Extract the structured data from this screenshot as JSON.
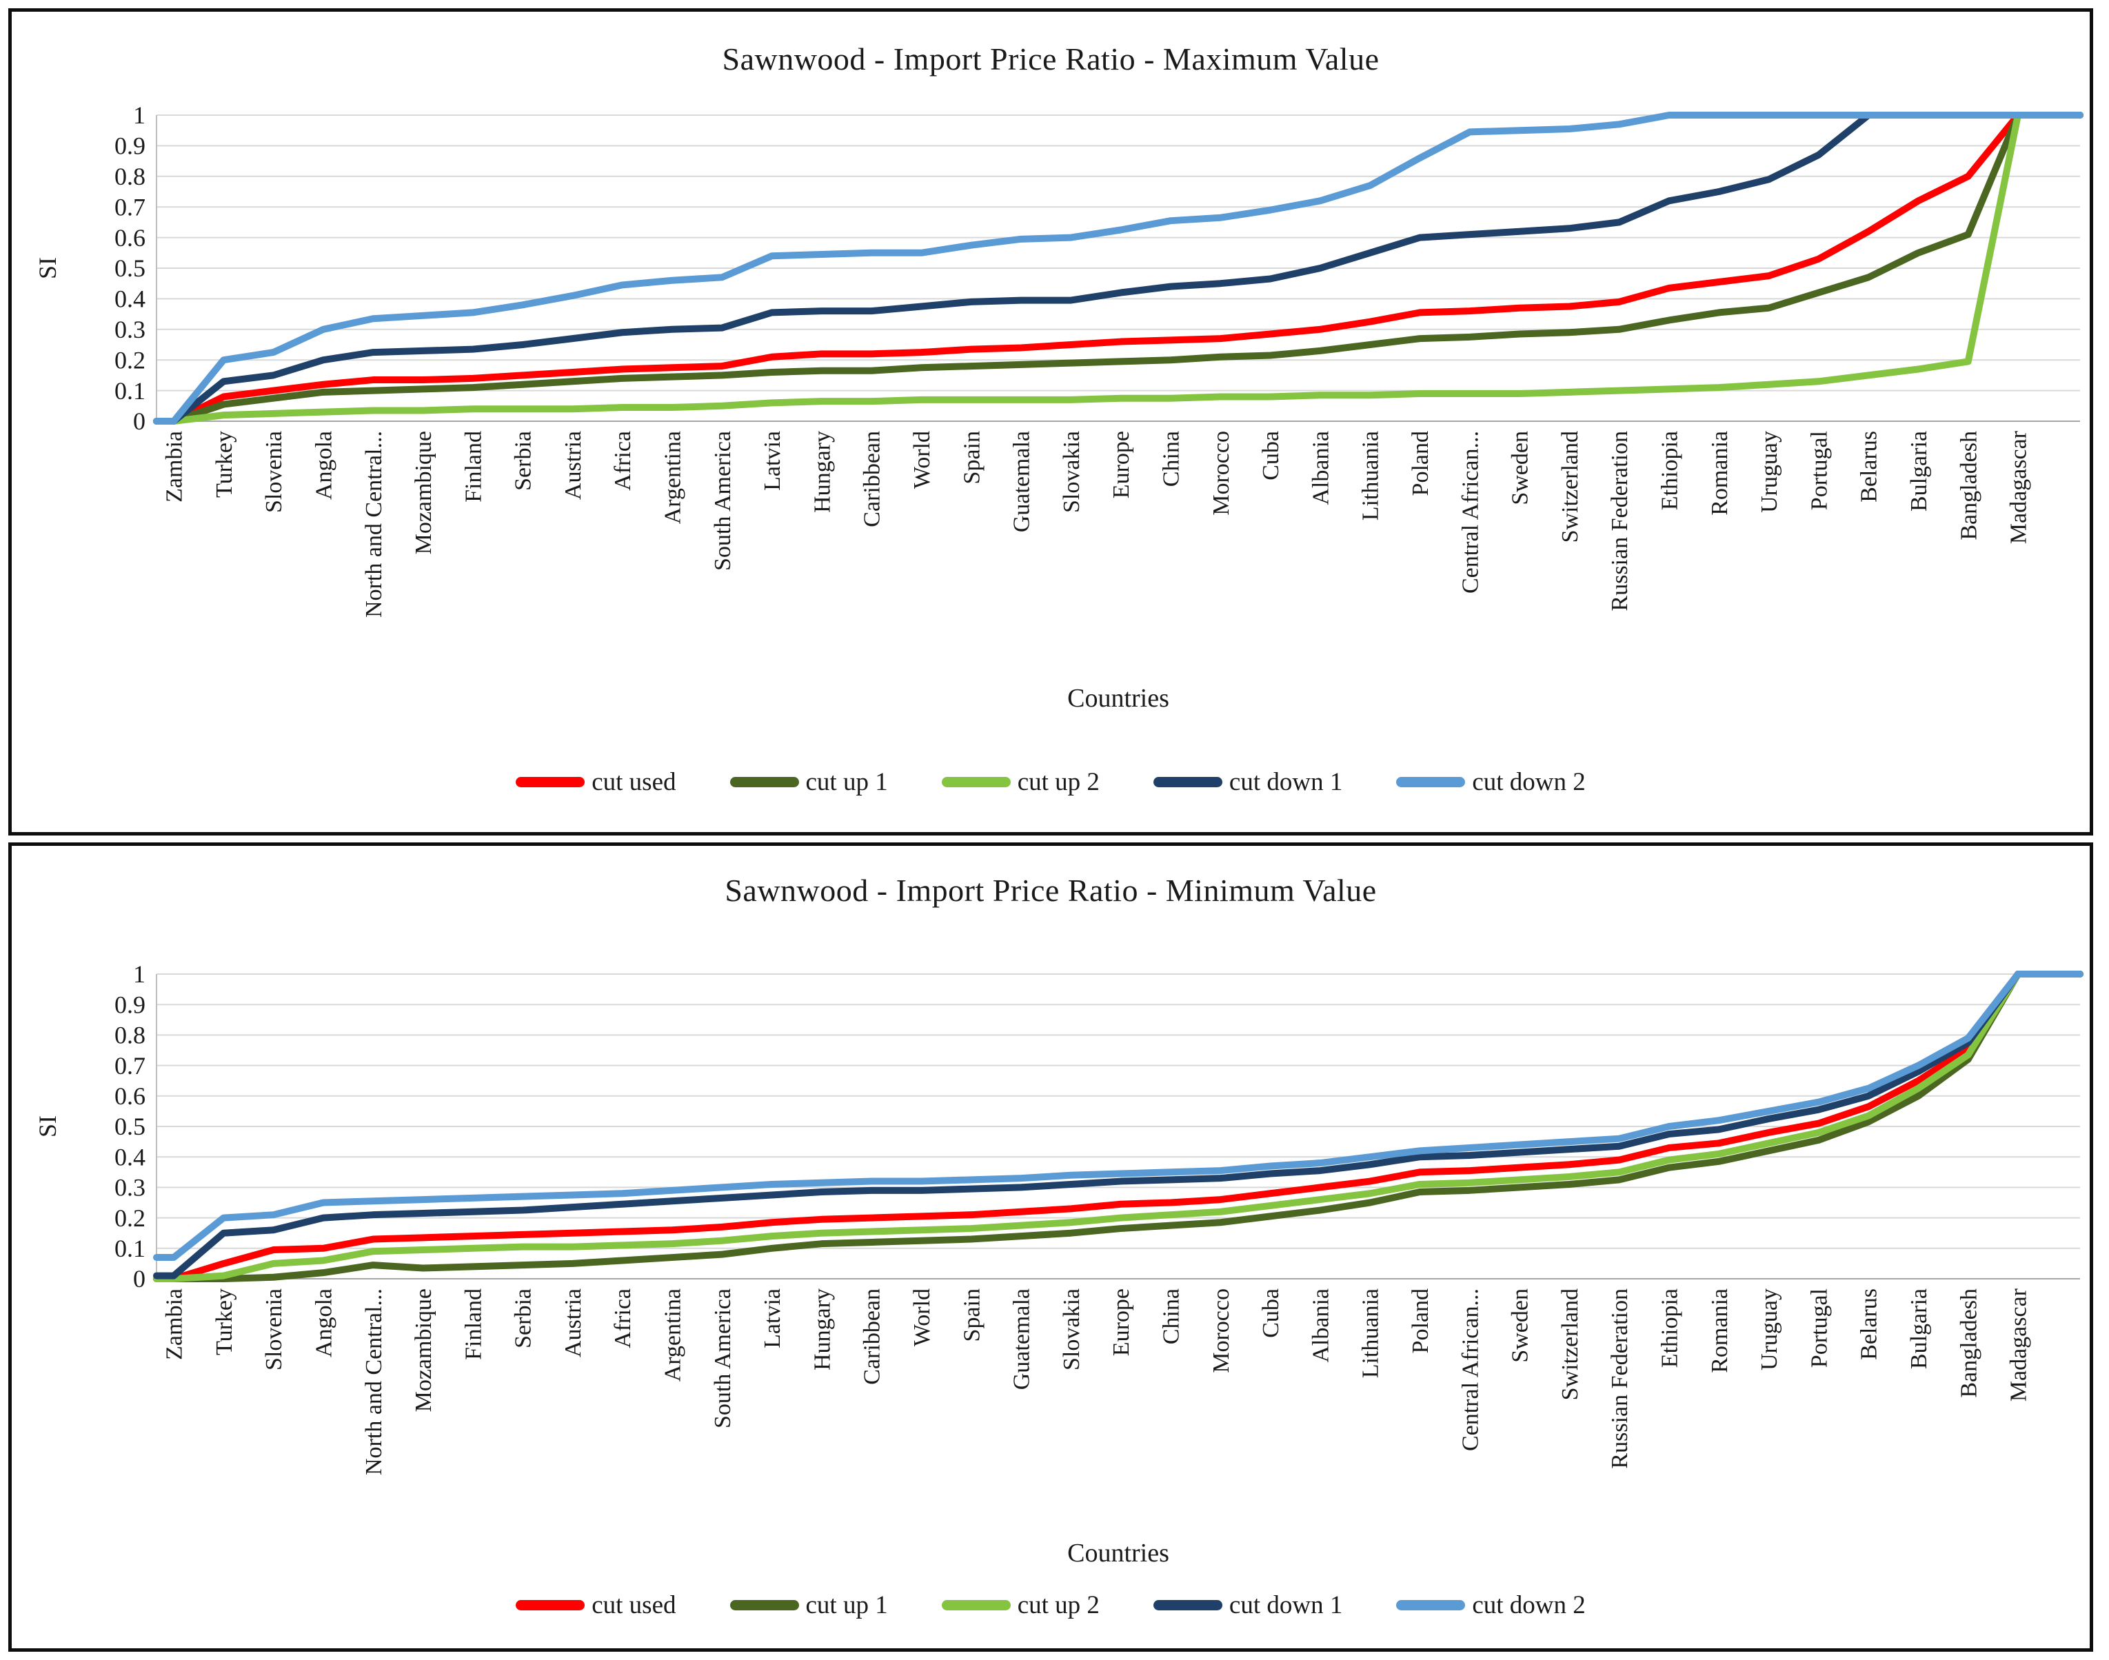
{
  "page": {
    "background_color": "#ffffff",
    "frame_border_color": "#0d0d0d"
  },
  "chart_data": [
    {
      "type": "line",
      "title": "Sawnwood - Import Price Ratio - Maximum Value",
      "xlabel": "Countries",
      "ylabel": "SI",
      "ylim": [
        0,
        1
      ],
      "y_ticks": [
        "0",
        "0.1",
        "0.2",
        "0.3",
        "0.4",
        "0.5",
        "0.6",
        "0.7",
        "0.8",
        "0.9",
        "1"
      ],
      "grid": "horizontal",
      "gridline_color": "#d9d9d9",
      "axis_line_color": "#bfbfbf",
      "legend_position": "bottom",
      "categories": [
        "Zambia",
        "Turkey",
        "Slovenia",
        "Angola",
        "North and Central...",
        "Mozambique",
        "Finland",
        "Serbia",
        "Austria",
        "Africa",
        "Argentina",
        "South America",
        "Latvia",
        "Hungary",
        "Caribbean",
        "World",
        "Spain",
        "Guatemala",
        "Slovakia",
        "Europe",
        "China",
        "Morocco",
        "Cuba",
        "Albania",
        "Lithuania",
        "Poland",
        "Central African...",
        "Sweden",
        "Switzerland",
        "Russian Federation",
        "Ethiopia",
        "Romania",
        "Uruguay",
        "Portugal",
        "Belarus",
        "Bulgaria",
        "Bangladesh",
        "Madagascar"
      ],
      "series": [
        {
          "name": "cut used",
          "color": "#ff0000",
          "values": [
            0,
            0.08,
            0.1,
            0.12,
            0.135,
            0.135,
            0.14,
            0.15,
            0.16,
            0.17,
            0.175,
            0.18,
            0.21,
            0.22,
            0.22,
            0.225,
            0.235,
            0.24,
            0.25,
            0.26,
            0.265,
            0.27,
            0.285,
            0.3,
            0.325,
            0.355,
            0.36,
            0.37,
            0.375,
            0.39,
            0.435,
            0.455,
            0.475,
            0.53,
            0.62,
            0.72,
            0.8,
            1.0
          ]
        },
        {
          "name": "cut up 1",
          "color": "#4a6620",
          "values": [
            0,
            0.055,
            0.075,
            0.095,
            0.1,
            0.105,
            0.11,
            0.12,
            0.13,
            0.14,
            0.145,
            0.15,
            0.16,
            0.165,
            0.165,
            0.175,
            0.18,
            0.185,
            0.19,
            0.195,
            0.2,
            0.21,
            0.215,
            0.23,
            0.25,
            0.27,
            0.275,
            0.285,
            0.29,
            0.3,
            0.33,
            0.355,
            0.37,
            0.42,
            0.47,
            0.55,
            0.61,
            1.0
          ]
        },
        {
          "name": "cut up 2",
          "color": "#85c441",
          "values": [
            0,
            0.02,
            0.025,
            0.03,
            0.035,
            0.035,
            0.04,
            0.04,
            0.04,
            0.045,
            0.045,
            0.05,
            0.06,
            0.065,
            0.065,
            0.07,
            0.07,
            0.07,
            0.07,
            0.075,
            0.075,
            0.08,
            0.08,
            0.085,
            0.085,
            0.09,
            0.09,
            0.09,
            0.095,
            0.1,
            0.105,
            0.11,
            0.12,
            0.13,
            0.15,
            0.17,
            0.195,
            1.0
          ]
        },
        {
          "name": "cut down 1",
          "color": "#1f4068",
          "values": [
            0,
            0.13,
            0.15,
            0.2,
            0.225,
            0.23,
            0.235,
            0.25,
            0.27,
            0.29,
            0.3,
            0.305,
            0.355,
            0.36,
            0.36,
            0.375,
            0.39,
            0.395,
            0.395,
            0.42,
            0.44,
            0.45,
            0.465,
            0.5,
            0.55,
            0.6,
            0.61,
            0.62,
            0.63,
            0.65,
            0.72,
            0.75,
            0.79,
            0.87,
            1.0,
            1.0,
            1.0,
            1.0
          ]
        },
        {
          "name": "cut down 2",
          "color": "#5b9bd5",
          "values": [
            0,
            0.2,
            0.225,
            0.3,
            0.335,
            0.345,
            0.355,
            0.38,
            0.41,
            0.445,
            0.46,
            0.47,
            0.54,
            0.545,
            0.55,
            0.55,
            0.575,
            0.595,
            0.6,
            0.625,
            0.655,
            0.665,
            0.69,
            0.72,
            0.77,
            0.86,
            0.945,
            0.95,
            0.955,
            0.97,
            1.0,
            1.0,
            1.0,
            1.0,
            1.0,
            1.0,
            1.0,
            1.0
          ]
        }
      ]
    },
    {
      "type": "line",
      "title": "Sawnwood - Import Price Ratio - Minimum Value",
      "xlabel": "Countries",
      "ylabel": "SI",
      "ylim": [
        0,
        1
      ],
      "y_ticks": [
        "0",
        "0.1",
        "0.2",
        "0.3",
        "0.4",
        "0.5",
        "0.6",
        "0.7",
        "0.8",
        "0.9",
        "1"
      ],
      "grid": "horizontal",
      "gridline_color": "#d9d9d9",
      "axis_line_color": "#bfbfbf",
      "legend_position": "bottom",
      "categories": [
        "Zambia",
        "Turkey",
        "Slovenia",
        "Angola",
        "North and Central...",
        "Mozambique",
        "Finland",
        "Serbia",
        "Austria",
        "Africa",
        "Argentina",
        "South America",
        "Latvia",
        "Hungary",
        "Caribbean",
        "World",
        "Spain",
        "Guatemala",
        "Slovakia",
        "Europe",
        "China",
        "Morocco",
        "Cuba",
        "Albania",
        "Lithuania",
        "Poland",
        "Central African...",
        "Sweden",
        "Switzerland",
        "Russian Federation",
        "Ethiopia",
        "Romania",
        "Uruguay",
        "Portugal",
        "Belarus",
        "Bulgaria",
        "Bangladesh",
        "Madagascar"
      ],
      "series": [
        {
          "name": "cut used",
          "color": "#ff0000",
          "values": [
            0,
            0.05,
            0.095,
            0.1,
            0.13,
            0.135,
            0.14,
            0.145,
            0.15,
            0.155,
            0.16,
            0.17,
            0.185,
            0.195,
            0.2,
            0.205,
            0.21,
            0.22,
            0.23,
            0.245,
            0.25,
            0.26,
            0.28,
            0.3,
            0.32,
            0.35,
            0.355,
            0.365,
            0.375,
            0.39,
            0.43,
            0.445,
            0.48,
            0.51,
            0.565,
            0.65,
            0.755,
            1.0
          ]
        },
        {
          "name": "cut up 1",
          "color": "#4a6620",
          "values": [
            0,
            0,
            0.005,
            0.02,
            0.045,
            0.035,
            0.04,
            0.045,
            0.05,
            0.06,
            0.07,
            0.08,
            0.1,
            0.115,
            0.12,
            0.125,
            0.13,
            0.14,
            0.15,
            0.165,
            0.175,
            0.185,
            0.205,
            0.225,
            0.25,
            0.285,
            0.29,
            0.3,
            0.31,
            0.325,
            0.365,
            0.385,
            0.42,
            0.455,
            0.515,
            0.6,
            0.72,
            1.0
          ]
        },
        {
          "name": "cut up 2",
          "color": "#85c441",
          "values": [
            0,
            0.01,
            0.05,
            0.06,
            0.09,
            0.095,
            0.1,
            0.105,
            0.105,
            0.11,
            0.115,
            0.125,
            0.14,
            0.15,
            0.155,
            0.16,
            0.165,
            0.175,
            0.185,
            0.2,
            0.21,
            0.22,
            0.24,
            0.26,
            0.28,
            0.31,
            0.315,
            0.325,
            0.335,
            0.35,
            0.39,
            0.41,
            0.445,
            0.48,
            0.535,
            0.625,
            0.735,
            1.0
          ]
        },
        {
          "name": "cut down 1",
          "color": "#1f4068",
          "values": [
            0.01,
            0.15,
            0.16,
            0.2,
            0.21,
            0.215,
            0.22,
            0.225,
            0.235,
            0.245,
            0.255,
            0.265,
            0.275,
            0.285,
            0.29,
            0.29,
            0.295,
            0.3,
            0.31,
            0.32,
            0.325,
            0.33,
            0.345,
            0.355,
            0.375,
            0.4,
            0.405,
            0.415,
            0.425,
            0.435,
            0.475,
            0.49,
            0.525,
            0.555,
            0.6,
            0.68,
            0.775,
            1.0
          ]
        },
        {
          "name": "cut down 2",
          "color": "#5b9bd5",
          "values": [
            0.07,
            0.2,
            0.21,
            0.25,
            0.255,
            0.26,
            0.265,
            0.27,
            0.275,
            0.28,
            0.29,
            0.3,
            0.31,
            0.315,
            0.32,
            0.32,
            0.325,
            0.33,
            0.34,
            0.345,
            0.35,
            0.355,
            0.37,
            0.38,
            0.4,
            0.42,
            0.43,
            0.44,
            0.45,
            0.46,
            0.5,
            0.52,
            0.55,
            0.58,
            0.625,
            0.7,
            0.79,
            1.0
          ]
        }
      ]
    }
  ]
}
